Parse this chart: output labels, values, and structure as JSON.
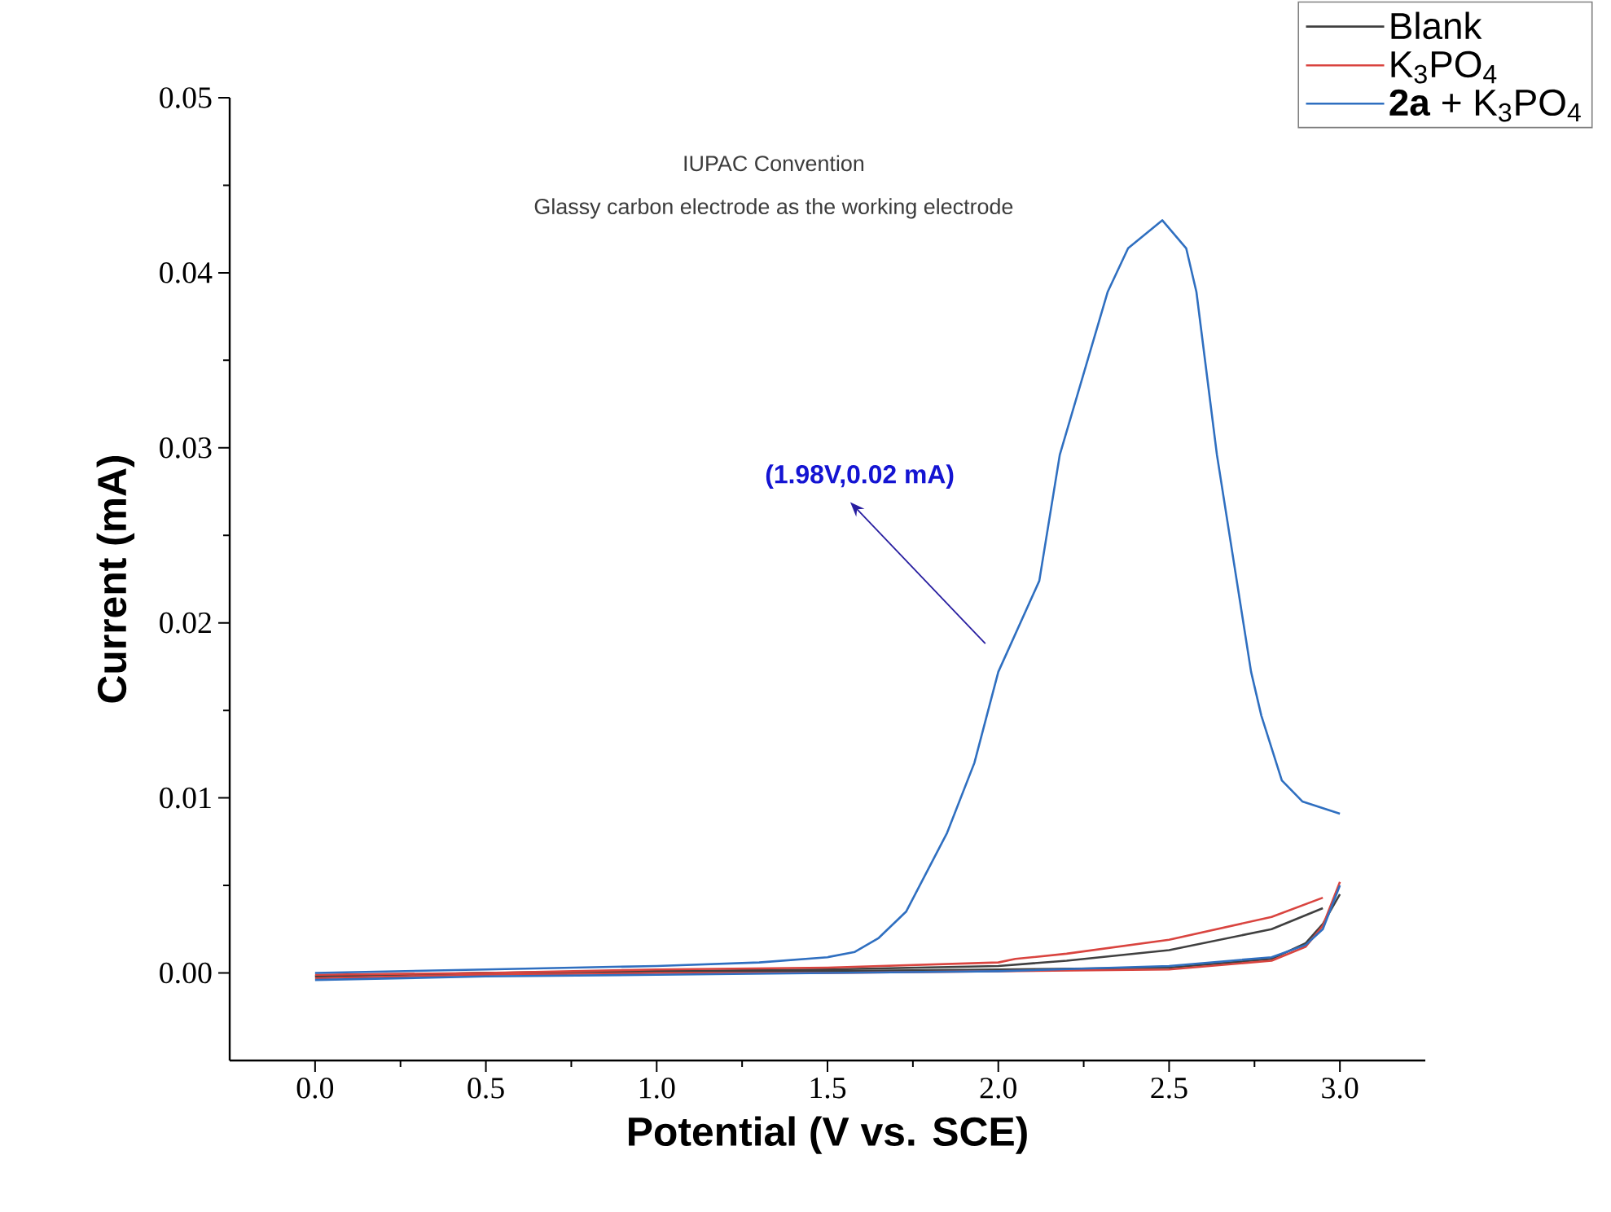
{
  "chart_data": {
    "type": "line",
    "xlabel": "Potential (V vs. SCE)",
    "ylabel": "Current (mA)",
    "xlim": [
      -0.25,
      3.25
    ],
    "ylim": [
      -0.005,
      0.05
    ],
    "xticks": [
      {
        "value": 0,
        "label": "0.0"
      },
      {
        "value": 0.5,
        "label": "0.5"
      },
      {
        "value": 1,
        "label": "1.0"
      },
      {
        "value": 1.5,
        "label": "1.5"
      },
      {
        "value": 2,
        "label": "2.0"
      },
      {
        "value": 2.5,
        "label": "2.5"
      },
      {
        "value": 3,
        "label": "3.0"
      }
    ],
    "yticks": [
      {
        "value": 0,
        "label": "0.00"
      },
      {
        "value": 0.01,
        "label": "0.01"
      },
      {
        "value": 0.02,
        "label": "0.02"
      },
      {
        "value": 0.03,
        "label": "0.03"
      },
      {
        "value": 0.04,
        "label": "0.04"
      },
      {
        "value": 0.05,
        "label": "0.05"
      }
    ],
    "legend": "top right",
    "grid": false,
    "marker": "none",
    "line_style": "solid",
    "annotations": [
      "IUPAC Convention",
      "Glassy carbon electrode as the working electrode",
      "(1.98V,0.02 mA)"
    ],
    "series": [
      {
        "name": "Blank",
        "color": "#404040",
        "x": [
          0,
          0.5,
          1,
          1.5,
          2,
          2.5,
          2.8,
          2.9,
          2.95,
          3.0
        ],
        "values": [
          -0.0002,
          0,
          0.0001,
          0.0001,
          0.0002,
          0.0003,
          0.0008,
          0.0017,
          0.0028,
          0.0045
        ]
      },
      {
        "color": "#404040",
        "x": [
          2.95,
          2.8,
          2.5,
          2.2,
          2.0,
          1.5,
          1,
          0.5,
          0
        ],
        "values": [
          0.0037,
          0.0025,
          0.0013,
          0.0007,
          0.0004,
          0.0002,
          0.0001,
          0,
          -0.0002
        ]
      },
      {
        "name": "K$_{3}$PO$_{4}$",
        "color": "#d9443f",
        "x": [
          0,
          0.5,
          1,
          1.5,
          2,
          2.5,
          2.8,
          2.9,
          2.95,
          3.0
        ],
        "values": [
          -0.0003,
          -0.0001,
          0,
          0,
          0.0001,
          0.0002,
          0.0007,
          0.0015,
          0.0027,
          0.0052
        ]
      },
      {
        "color": "#d9443f",
        "x": [
          2.95,
          2.8,
          2.5,
          2.2,
          2.05,
          2.0,
          1.5,
          1,
          0.5,
          0
        ],
        "values": [
          0.0043,
          0.0032,
          0.0019,
          0.0011,
          0.0008,
          0.0006,
          0.0003,
          0.0002,
          0,
          -0.0001
        ]
      },
      {
        "name": "**2a** + K$_{3}$PO$_{4}$",
        "color": "#2f6fc0",
        "x": [
          0,
          0.5,
          1,
          1.3,
          1.5,
          1.58,
          1.65,
          1.73,
          1.85,
          1.93,
          2.0,
          2.12,
          2.18,
          2.32,
          2.38,
          2.48,
          2.55,
          2.58,
          2.64,
          2.69,
          2.74,
          2.77,
          2.83,
          2.89,
          3.0
        ],
        "values": [
          0,
          0.0002,
          0.0004,
          0.0006,
          0.0009,
          0.0012,
          0.002,
          0.0035,
          0.008,
          0.012,
          0.0172,
          0.0224,
          0.0296,
          0.0389,
          0.0414,
          0.043,
          0.0414,
          0.0389,
          0.0296,
          0.0234,
          0.0172,
          0.0147,
          0.011,
          0.0098,
          0.0091
        ]
      },
      {
        "color": "#2f6fc0",
        "x": [
          3.0,
          2.95,
          2.9,
          2.8,
          2.5,
          2.0,
          1.5,
          1,
          0.5,
          0
        ],
        "values": [
          0.005,
          0.0025,
          0.0016,
          0.0009,
          0.0004,
          0.0001,
          0,
          -0.0001,
          -0.0002,
          -0.0004
        ]
      }
    ]
  }
}
